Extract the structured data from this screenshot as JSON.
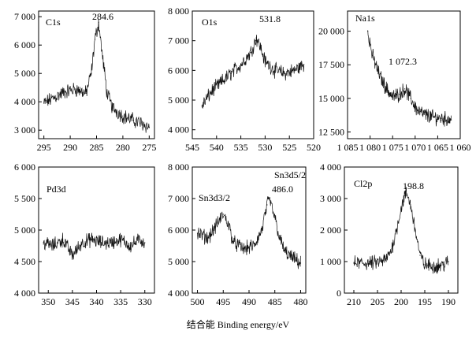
{
  "figure": {
    "xlabel": "结合能 Binding energy/eV"
  },
  "chart_data": [
    {
      "type": "line",
      "panel_label": "C1s",
      "peak_label": "284.6",
      "xlim": [
        296,
        274
      ],
      "ylim": [
        2700,
        7200
      ],
      "x_ticks": [
        295,
        290,
        285,
        280,
        275
      ],
      "x_tick_labels": [
        "295",
        "290",
        "285",
        "280",
        "275"
      ],
      "y_ticks": [
        3000,
        4000,
        5000,
        6000,
        7000
      ],
      "y_tick_labels": [
        "3 000",
        "4 000",
        "5 000",
        "6 000",
        "7 000"
      ],
      "x": [
        295,
        293,
        291,
        289,
        287,
        286,
        285.3,
        284.6,
        284,
        283,
        282,
        280,
        278,
        276,
        275
      ],
      "y": [
        3950,
        4150,
        4350,
        4450,
        4300,
        5000,
        6200,
        6800,
        5800,
        4300,
        3800,
        3500,
        3350,
        3200,
        3100
      ]
    },
    {
      "type": "line",
      "panel_label": "O1s",
      "peak_label": "531.8",
      "xlim": [
        545,
        520
      ],
      "ylim": [
        3700,
        8000
      ],
      "x_ticks": [
        545,
        540,
        535,
        530,
        525,
        520
      ],
      "x_tick_labels": [
        "545",
        "540",
        "535",
        "530",
        "525",
        "520"
      ],
      "y_ticks": [
        4000,
        5000,
        6000,
        7000,
        8000
      ],
      "y_tick_labels": [
        "4 000",
        "5 000",
        "6 000",
        "7 000",
        "8 000"
      ],
      "x": [
        543,
        541,
        539,
        537,
        535,
        533,
        532,
        531.8,
        531,
        530,
        528,
        526,
        524,
        522
      ],
      "y": [
        4800,
        5300,
        5600,
        5900,
        6200,
        6600,
        7000,
        7100,
        6800,
        6300,
        6000,
        5900,
        6000,
        6200
      ]
    },
    {
      "type": "line",
      "panel_label": "Na1s",
      "peak_label": "1 072.3",
      "xlim": [
        1085,
        1060
      ],
      "ylim": [
        12000,
        21500
      ],
      "x_ticks": [
        1085,
        1080,
        1075,
        1070,
        1065,
        1060
      ],
      "x_tick_labels": [
        "1 085",
        "1 080",
        "1 075",
        "1 070",
        "1 065",
        "1 060"
      ],
      "y_ticks": [
        12500,
        15000,
        17500,
        20000
      ],
      "y_tick_labels": [
        "12 500",
        "15 000",
        "17 500",
        "20 000"
      ],
      "x": [
        1080.5,
        1079.5,
        1078,
        1076.5,
        1075,
        1073.5,
        1072.3,
        1071,
        1069.5,
        1068,
        1066,
        1064,
        1062
      ],
      "y": [
        20000,
        18200,
        16800,
        15800,
        15100,
        15300,
        15700,
        15000,
        14100,
        13800,
        13600,
        13500,
        13400
      ]
    },
    {
      "type": "line",
      "panel_label": "Pd3d",
      "xlim": [
        352,
        328
      ],
      "ylim": [
        4000,
        6000
      ],
      "x_ticks": [
        350,
        345,
        340,
        335,
        330
      ],
      "x_tick_labels": [
        "350",
        "345",
        "340",
        "335",
        "330"
      ],
      "y_ticks": [
        4000,
        4500,
        5000,
        5500,
        6000
      ],
      "y_tick_labels": [
        "4 000",
        "4 500",
        "5 000",
        "5 500",
        "6 000"
      ],
      "x": [
        351,
        349,
        347,
        345,
        343,
        341,
        339,
        337,
        335,
        333,
        331,
        330
      ],
      "y": [
        4800,
        4750,
        4850,
        4600,
        4800,
        4850,
        4800,
        4800,
        4850,
        4750,
        4850,
        4800
      ]
    },
    {
      "type": "line",
      "panel_labels": [
        "Sn3d3/2",
        "Sn3d5/2"
      ],
      "peak_label": "486.0",
      "xlim": [
        501,
        479
      ],
      "ylim": [
        4000,
        8000
      ],
      "x_ticks": [
        500,
        495,
        490,
        485,
        480
      ],
      "x_tick_labels": [
        "500",
        "495",
        "490",
        "485",
        "480"
      ],
      "y_ticks": [
        4000,
        5000,
        6000,
        7000,
        8000
      ],
      "y_tick_labels": [
        "4 000",
        "5 000",
        "6 000",
        "7 000",
        "8 000"
      ],
      "x": [
        500,
        498,
        496.5,
        495,
        494,
        493,
        491,
        489,
        487.5,
        486.5,
        486,
        485,
        484,
        483,
        481.5,
        480
      ],
      "y": [
        5900,
        5750,
        6100,
        6500,
        6200,
        5600,
        5400,
        5500,
        6000,
        6800,
        6950,
        6400,
        5700,
        5300,
        5100,
        4950
      ]
    },
    {
      "type": "line",
      "panel_label": "Cl2p",
      "peak_label": "198.8",
      "xlim": [
        212,
        188
      ],
      "ylim": [
        0,
        4000
      ],
      "x_ticks": [
        210,
        205,
        200,
        195,
        190
      ],
      "x_tick_labels": [
        "210",
        "205",
        "200",
        "195",
        "190"
      ],
      "y_ticks": [
        0,
        1000,
        2000,
        3000,
        4000
      ],
      "y_tick_labels": [
        "0",
        "1 000",
        "2 000",
        "3 000",
        "4 000"
      ],
      "x": [
        210,
        208,
        206,
        204,
        203,
        202,
        201,
        200,
        199.2,
        198.8,
        198,
        197,
        196,
        195,
        193,
        191,
        190
      ],
      "y": [
        950,
        950,
        950,
        1000,
        1100,
        1400,
        2000,
        2700,
        3100,
        3150,
        2800,
        2000,
        1200,
        900,
        850,
        900,
        1000
      ]
    }
  ]
}
